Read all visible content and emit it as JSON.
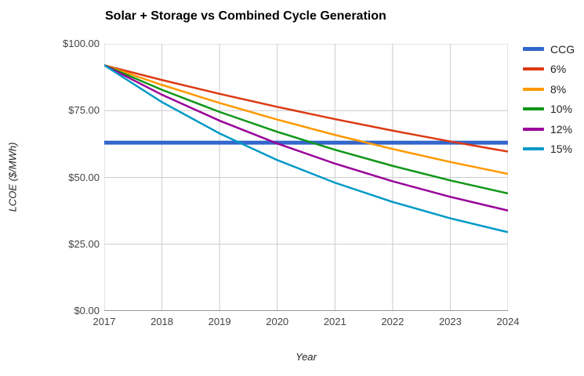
{
  "chart_data": {
    "type": "line",
    "title": "Solar + Storage vs Combined Cycle Generation",
    "xlabel": "Year",
    "ylabel": "LCOE ($/MWh)",
    "x": [
      2017,
      2018,
      2019,
      2020,
      2021,
      2022,
      2023,
      2024
    ],
    "x_tick_labels": [
      "2017",
      "2018",
      "2019",
      "2020",
      "2021",
      "2022",
      "2023",
      "2024"
    ],
    "ylim": [
      0,
      100
    ],
    "y_ticks": [
      {
        "value": 0,
        "label": "$0.00"
      },
      {
        "value": 25,
        "label": "$25.00"
      },
      {
        "value": 50,
        "label": "$50.00"
      },
      {
        "value": 75,
        "label": "$75.00"
      },
      {
        "value": 100,
        "label": "$100.00"
      }
    ],
    "grid": true,
    "grid_color": "#cccccc",
    "axis_color": "#333333",
    "legend_position": "right",
    "series": [
      {
        "name": "CCG",
        "color": "#3366CC",
        "line_width": 5,
        "values": [
          63,
          63,
          63,
          63,
          63,
          63,
          63,
          63
        ]
      },
      {
        "name": "6%",
        "color": "#DC3912",
        "line_width": 2.5,
        "values": [
          92.0,
          86.48,
          81.29,
          76.41,
          71.83,
          67.52,
          63.47,
          59.66
        ]
      },
      {
        "name": "8%",
        "color": "#FF9900",
        "line_width": 2.5,
        "values": [
          92.0,
          84.64,
          77.87,
          71.64,
          65.91,
          60.64,
          55.78,
          51.32
        ]
      },
      {
        "name": "10%",
        "color": "#109618",
        "line_width": 2.5,
        "values": [
          92.0,
          82.8,
          74.52,
          67.07,
          60.36,
          54.33,
          48.89,
          44.0
        ]
      },
      {
        "name": "12%",
        "color": "#990099",
        "line_width": 2.5,
        "values": [
          92.0,
          80.96,
          71.24,
          62.7,
          55.17,
          48.55,
          42.73,
          37.6
        ]
      },
      {
        "name": "15%",
        "color": "#0099C6",
        "line_width": 2.5,
        "values": [
          92.0,
          78.2,
          66.47,
          56.5,
          48.02,
          40.82,
          34.7,
          29.49
        ]
      }
    ]
  }
}
